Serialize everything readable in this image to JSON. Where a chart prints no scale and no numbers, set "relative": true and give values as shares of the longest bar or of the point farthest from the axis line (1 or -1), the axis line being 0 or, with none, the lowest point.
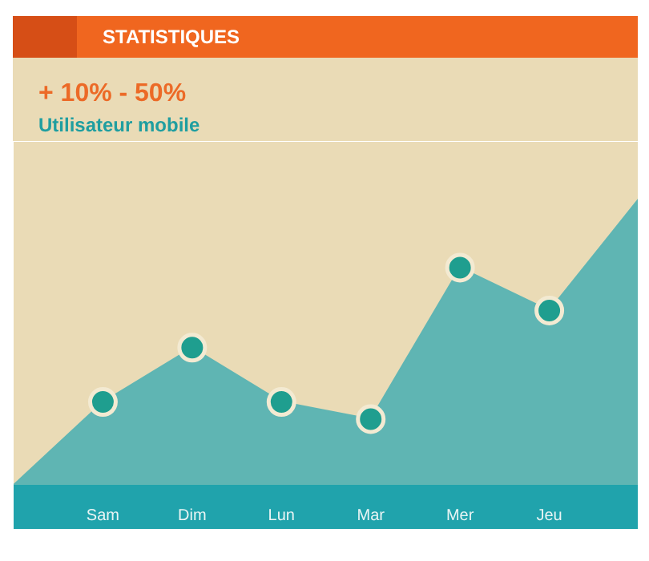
{
  "chart_data": {
    "type": "area",
    "title": "STATISTIQUES",
    "subtitle": "+ 10% - 50%",
    "annotations": [
      "Utilisateur mobile"
    ],
    "relative": true,
    "grid": false,
    "marker": "circle",
    "categories": [
      null,
      "Sam",
      "Dim",
      "Lun",
      "Mar",
      "Mer",
      "Jeu",
      null
    ],
    "series": [
      {
        "color": "#5fb5b3",
        "values": [
          0,
          0.29,
          0.48,
          0.29,
          0.23,
          0.76,
          0.61,
          1
        ]
      }
    ]
  }
}
